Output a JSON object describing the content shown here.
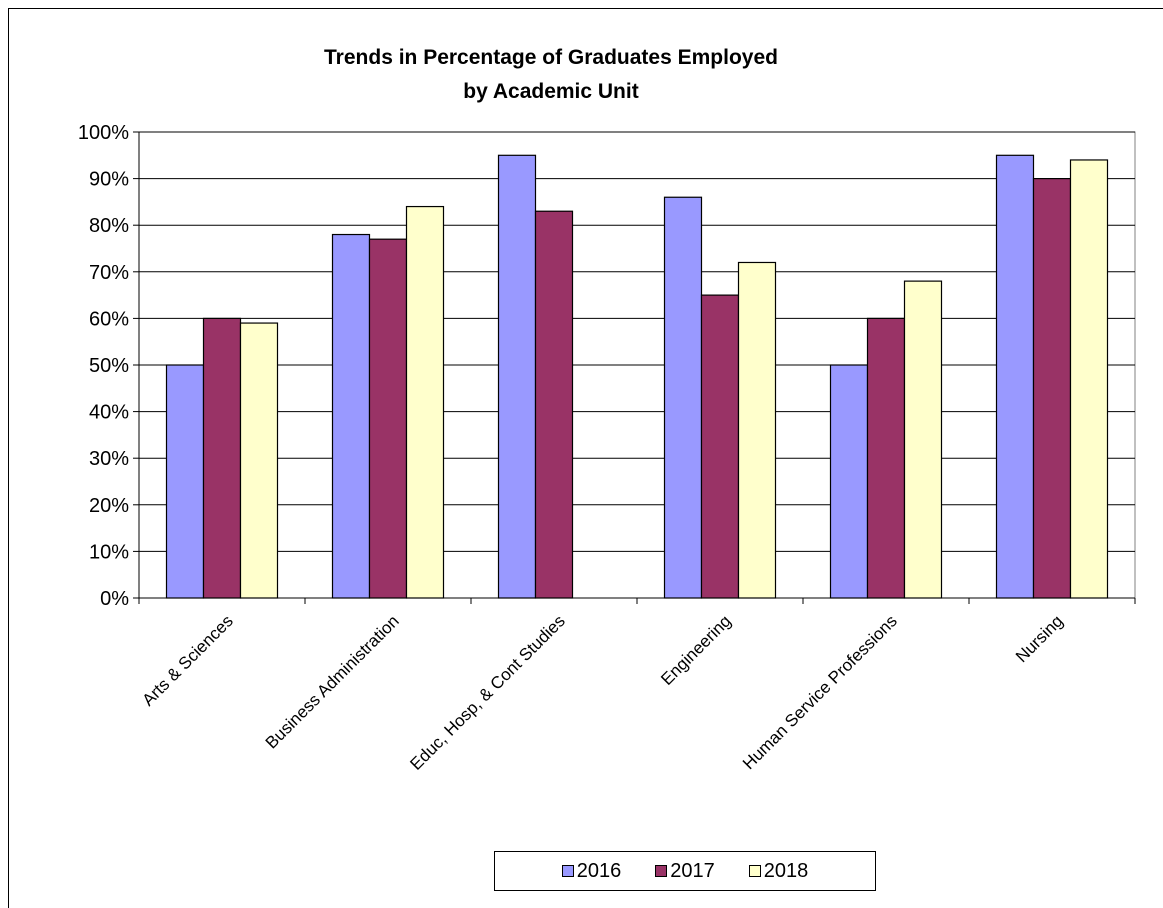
{
  "chart_data": {
    "type": "bar",
    "title": "Trends in Percentage of Graduates Employed",
    "subtitle": "by Academic Unit",
    "categories": [
      "Arts & Sciences",
      "Business Administration",
      "Educ, Hosp, & Cont Studies",
      "Engineering",
      "Human Service Professions",
      "Nursing"
    ],
    "series": [
      {
        "name": "2016",
        "color": "#9999ff",
        "values": [
          50,
          78,
          95,
          86,
          50,
          95
        ]
      },
      {
        "name": "2017",
        "color": "#993366",
        "values": [
          60,
          77,
          83,
          65,
          60,
          90
        ]
      },
      {
        "name": "2018",
        "color": "#ffffcc",
        "values": [
          59,
          84,
          null,
          72,
          68,
          94
        ]
      }
    ],
    "y_ticks": [
      "0%",
      "10%",
      "20%",
      "30%",
      "40%",
      "50%",
      "60%",
      "70%",
      "80%",
      "90%",
      "100%"
    ],
    "ylim": [
      0,
      100
    ],
    "grid": true,
    "legend_position": "bottom"
  }
}
